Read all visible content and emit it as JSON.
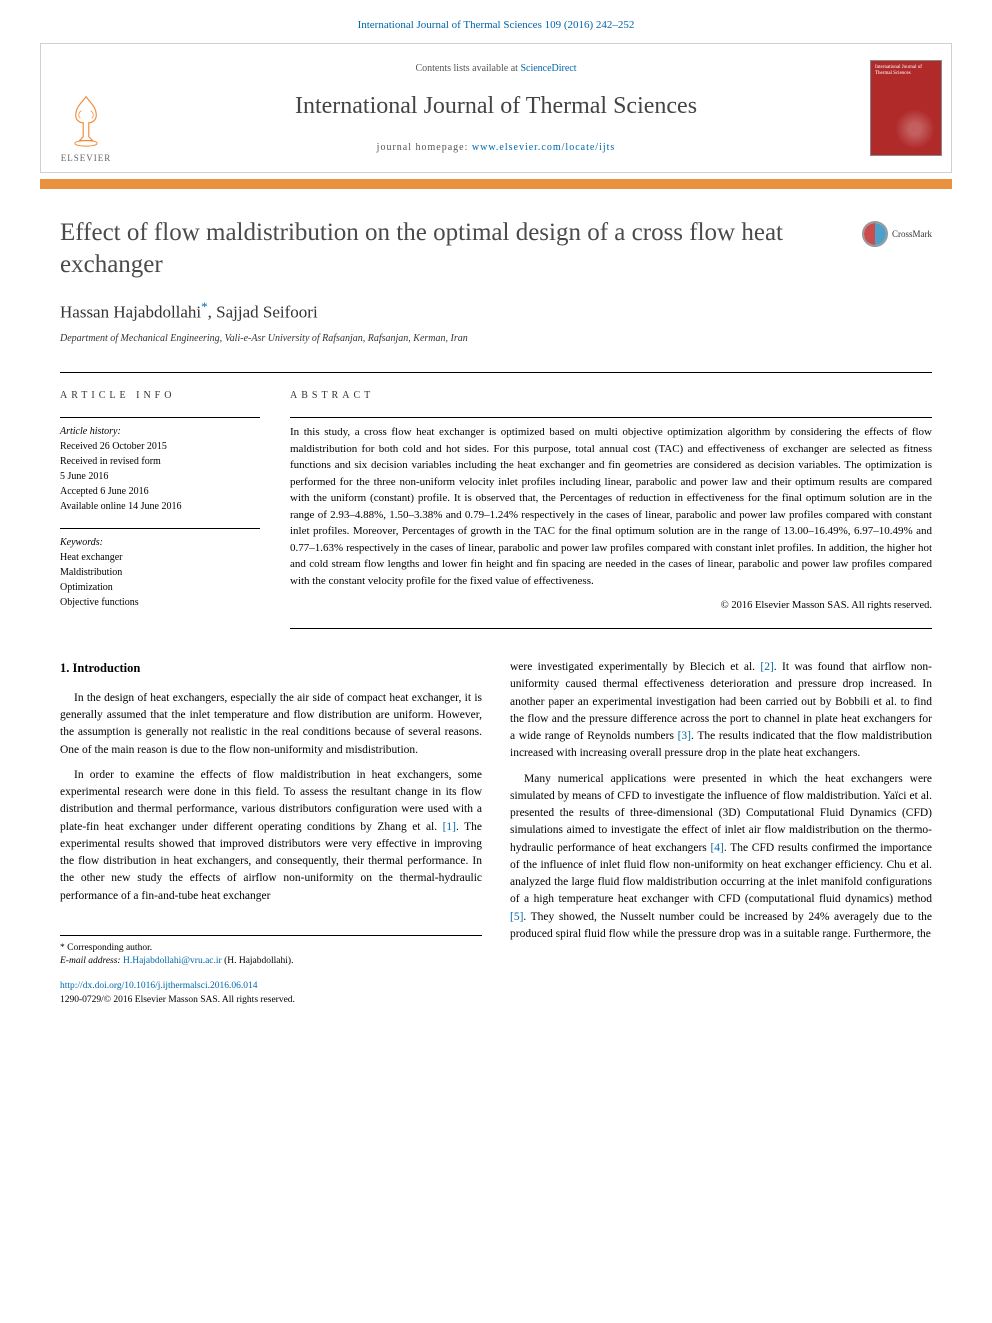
{
  "header": {
    "citation": "International Journal of Thermal Sciences 109 (2016) 242–252",
    "contents_prefix": "Contents lists available at ",
    "contents_link": "ScienceDirect",
    "journal_name": "International Journal of Thermal Sciences",
    "homepage_prefix": "journal homepage: ",
    "homepage_url": "www.elsevier.com/locate/ijts",
    "publisher_label": "ELSEVIER",
    "cover_label": "International Journal of Thermal Sciences",
    "colors": {
      "link": "#0066aa",
      "orange_bar": "#e8913f",
      "cover_bg": "#b02a2a",
      "border": "#d0d0d0"
    }
  },
  "crossmark_label": "CrossMark",
  "title": "Effect of flow maldistribution on the optimal design of a cross flow heat exchanger",
  "authors_html": "Hassan Hajabdollahi",
  "author2": "Sajjad Seifoori",
  "corr_mark": "*",
  "affiliation": "Department of Mechanical Engineering, Vali-e-Asr University of Rafsanjan, Rafsanjan, Kerman, Iran",
  "labels": {
    "article_info": "ARTICLE INFO",
    "abstract": "ABSTRACT",
    "history": "Article history:",
    "keywords": "Keywords:"
  },
  "history": {
    "received": "Received 26 October 2015",
    "revised": "Received in revised form",
    "revised_date": "5 June 2016",
    "accepted": "Accepted 6 June 2016",
    "online": "Available online 14 June 2016"
  },
  "keywords": [
    "Heat exchanger",
    "Maldistribution",
    "Optimization",
    "Objective functions"
  ],
  "abstract": "In this study, a cross flow heat exchanger is optimized based on multi objective optimization algorithm by considering the effects of flow maldistribution for both cold and hot sides. For this purpose, total annual cost (TAC) and effectiveness of exchanger are selected as fitness functions and six decision variables including the heat exchanger and fin geometries are considered as decision variables. The optimization is performed for the three non-uniform velocity inlet profiles including linear, parabolic and power law and their optimum results are compared with the uniform (constant) profile. It is observed that, the Percentages of reduction in effectiveness for the final optimum solution are in the range of 2.93–4.88%, 1.50–3.38% and 0.79–1.24% respectively in the cases of linear, parabolic and power law profiles compared with constant inlet profiles. Moreover, Percentages of growth in the TAC for the final optimum solution are in the range of 13.00–16.49%, 6.97–10.49% and 0.77–1.63% respectively in the cases of linear, parabolic and power law profiles compared with constant inlet profiles. In addition, the higher hot and cold stream flow lengths and lower fin height and fin spacing are needed in the cases of linear, parabolic and power law profiles compared with the constant velocity profile for the fixed value of effectiveness.",
  "copyright": "© 2016 Elsevier Masson SAS. All rights reserved.",
  "intro_heading": "1. Introduction",
  "intro_paragraphs_left": [
    "In the design of heat exchangers, especially the air side of compact heat exchanger, it is generally assumed that the inlet temperature and flow distribution are uniform. However, the assumption is generally not realistic in the real conditions because of several reasons. One of the main reason is due to the flow non-uniformity and misdistribution.",
    "In order to examine the effects of flow maldistribution in heat exchangers, some experimental research were done in this field. To assess the resultant change in its flow distribution and thermal performance, various distributors configuration were used with a plate-fin heat exchanger under different operating conditions by Zhang et al. [1]. The experimental results showed that improved distributors were very effective in improving the flow distribution in heat exchangers, and consequently, their thermal performance. In the other new study the effects of airflow non-uniformity on the thermal-hydraulic performance of a fin-and-tube heat exchanger"
  ],
  "intro_paragraphs_right": [
    "were investigated experimentally by Blecich et al. [2]. It was found that airflow non-uniformity caused thermal effectiveness deterioration and pressure drop increased. In another paper an experimental investigation had been carried out by Bobbili et al. to find the flow and the pressure difference across the port to channel in plate heat exchangers for a wide range of Reynolds numbers [3]. The results indicated that the flow maldistribution increased with increasing overall pressure drop in the plate heat exchangers.",
    "Many numerical applications were presented in which the heat exchangers were simulated by means of CFD to investigate the influence of flow maldistribution. Yaïci et al. presented the results of three-dimensional (3D) Computational Fluid Dynamics (CFD) simulations aimed to investigate the effect of inlet air flow maldistribution on the thermo-hydraulic performance of heat exchangers [4]. The CFD results confirmed the importance of the influence of inlet fluid flow non-uniformity on heat exchanger efficiency. Chu et al. analyzed the large fluid flow maldistribution occurring at the inlet manifold configurations of a high temperature heat exchanger with CFD (computational fluid dynamics) method [5]. They showed, the Nusselt number could be increased by 24% averagely due to the produced spiral fluid flow while the pressure drop was in a suitable range. Furthermore, the"
  ],
  "footnote": {
    "corr_label": "* Corresponding author.",
    "email_label": "E-mail address:",
    "email": "H.Hajabdollahi@vru.ac.ir",
    "email_suffix": "(H. Hajabdollahi)."
  },
  "doi": {
    "url": "http://dx.doi.org/10.1016/j.ijthermalsci.2016.06.014",
    "issn_line": "1290-0729/© 2016 Elsevier Masson SAS. All rights reserved."
  },
  "ref_links": [
    "[1]",
    "[2]",
    "[3]",
    "[4]",
    "[5]"
  ]
}
